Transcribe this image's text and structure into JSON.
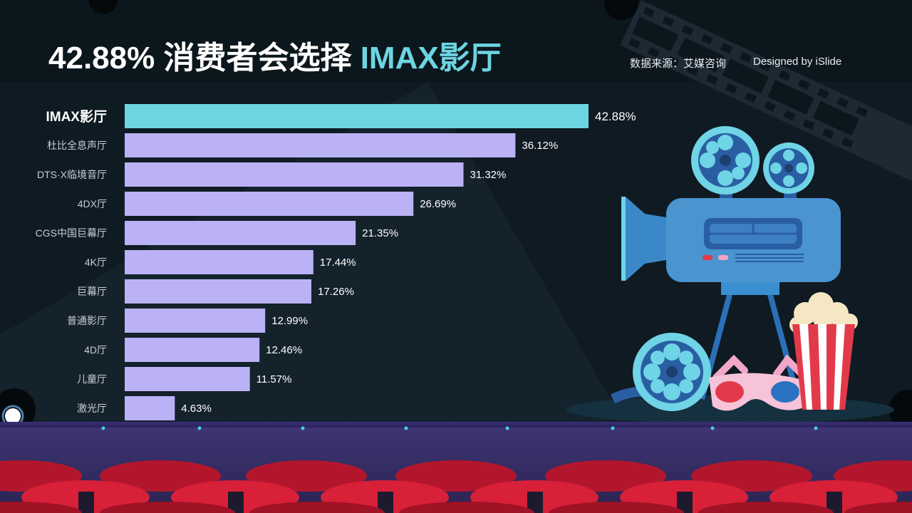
{
  "title": {
    "prefix": "42.88% 消费者会选择 ",
    "accent": "IMAX影厅"
  },
  "source_label": "数据来源：艾媒咨询",
  "designed_label": "Designed by iSlide",
  "colors": {
    "highlight_bar": "#6dd5e2",
    "bar": "#bbb2f5",
    "background": "#0f1a22"
  },
  "chart_data": {
    "type": "bar",
    "orientation": "horizontal",
    "categories": [
      "IMAX影厅",
      "杜比全息声厅",
      "DTS·X临境音厅",
      "4DX厅",
      "CGS中国巨幕厅",
      "4K厅",
      "巨幕厅",
      "普通影厅",
      "4D厅",
      "儿童厅",
      "激光厅"
    ],
    "values": [
      42.88,
      36.12,
      31.32,
      26.69,
      21.35,
      17.44,
      17.26,
      12.99,
      12.46,
      11.57,
      4.63
    ],
    "value_labels": [
      "42.88%",
      "36.12%",
      "31.32%",
      "26.69%",
      "21.35%",
      "17.44%",
      "17.26%",
      "12.99%",
      "12.46%",
      "11.57%",
      "4.63%"
    ],
    "highlight_index": 0,
    "unit": "%",
    "grid": false,
    "legend": "none"
  }
}
